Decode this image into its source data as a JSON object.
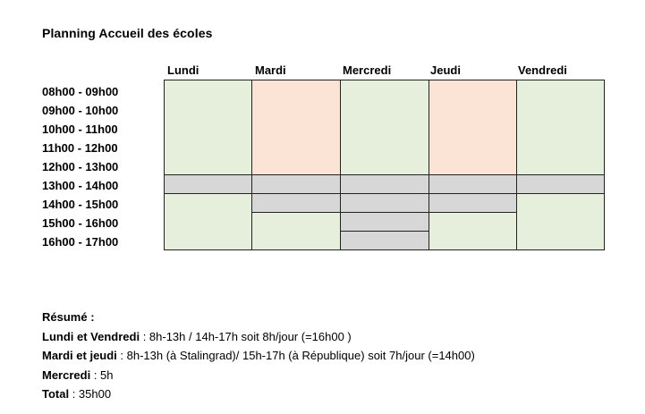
{
  "title": "Planning Accueil des écoles",
  "days": [
    "Lundi",
    "Mardi",
    "Mercredi",
    "Jeudi",
    "Vendredi"
  ],
  "time_slots": [
    "08h00 - 09h00",
    "09h00 - 10h00",
    "10h00 - 11h00",
    "11h00 - 12h00",
    "12h00 - 13h00",
    "13h00 - 14h00",
    "14h00 - 15h00",
    "15h00 - 16h00",
    "16h00 - 17h00"
  ],
  "colors": {
    "green": "#e6efdc",
    "peach": "#fbe4d6",
    "grey": "#d7d7d7"
  },
  "summary": {
    "heading": "Résumé :",
    "lundi_vendredi_label": "Lundi et Vendredi",
    "lundi_vendredi_text": " : 8h-13h / 14h-17h soit 8h/jour (=16h00 )",
    "mardi_jeudi_label": "Mardi et jeudi",
    "mardi_jeudi_text": " : 8h-13h (à Stalingrad)/ 15h-17h (à République) soit 7h/jour (=14h00)",
    "mercredi_label": "Mercredi",
    "mercredi_text": " : 5h",
    "total_label": "Total",
    "total_text": " : 35h00"
  }
}
